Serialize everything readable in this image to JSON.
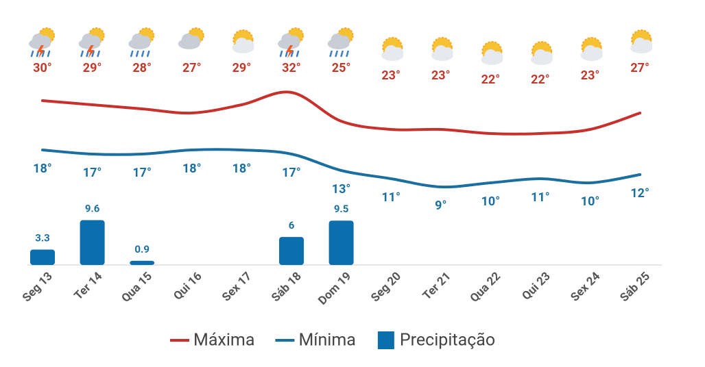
{
  "chart_data": {
    "type": "weather",
    "categories": [
      "Seg 13",
      "Ter 14",
      "Qua 15",
      "Qui 16",
      "Sex 17",
      "Sáb 18",
      "Dom 19",
      "Seg 20",
      "Ter 21",
      "Qua 22",
      "Qui 23",
      "Sex 24",
      "Sáb 25"
    ],
    "ylim": [
      -10,
      40
    ],
    "y2lim": [
      0,
      44
    ],
    "series": [
      {
        "name": "Máxima",
        "color": "#c8302c",
        "kind": "line",
        "values": [
          30,
          29,
          28,
          27,
          29,
          32,
          25,
          23,
          23,
          22,
          22,
          23,
          27
        ],
        "value_labels": [
          "30°",
          "29°",
          "28°",
          "27°",
          "29°",
          "32°",
          "25°",
          "23°",
          "23°",
          "22°",
          "22°",
          "23°",
          "27°"
        ]
      },
      {
        "name": "Mínima",
        "color": "#1a6fa0",
        "kind": "line",
        "values": [
          18,
          17,
          17,
          18,
          18,
          17,
          13,
          11,
          9,
          10,
          11,
          10,
          12
        ],
        "value_labels": [
          "18°",
          "17°",
          "17°",
          "18°",
          "18°",
          "17°",
          "13°",
          "11°",
          "9°",
          "10°",
          "11°",
          "10°",
          "12°"
        ]
      },
      {
        "name": "Precipitação",
        "color": "#0b6fae",
        "kind": "bar",
        "axis": "y2",
        "values": [
          3.3,
          9.6,
          0.9,
          null,
          null,
          6,
          9.5,
          null,
          null,
          null,
          null,
          null,
          null
        ]
      }
    ]
  }
}
